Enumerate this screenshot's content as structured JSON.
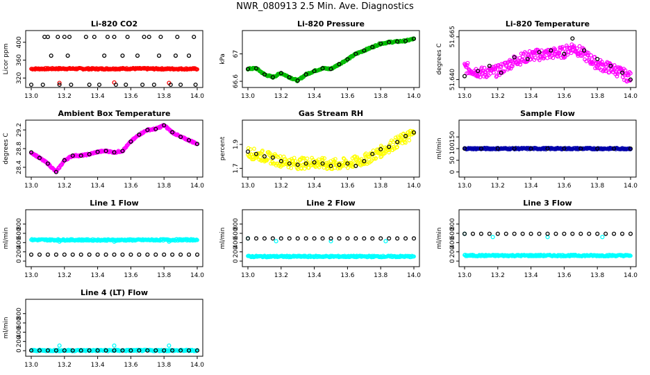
{
  "page_title": "NWR_080913  2.5 Min. Ave. Diagnostics",
  "chart_data": [
    {
      "type": "scatter",
      "title": "Li-820 CO2",
      "ylabel": "Licor ppm",
      "xlim": [
        13.0,
        14.0
      ],
      "ylim": [
        305,
        420
      ],
      "yticks": [
        320,
        360,
        400
      ],
      "xticks": [
        13.0,
        13.2,
        13.4,
        13.6,
        13.8,
        14.0
      ],
      "series": [
        {
          "color": "#ff0000",
          "style": "band",
          "x": [
            13.0,
            13.2,
            13.4,
            13.6,
            13.8,
            13.99
          ],
          "y": [
            340.5,
            341.0,
            340.5,
            341.0,
            340.5,
            340.5
          ]
        },
        {
          "color": "#ff0000",
          "style": "points",
          "x": [
            13.17,
            13.5,
            13.83
          ],
          "y": [
            309,
            310,
            309
          ]
        },
        {
          "color": "#000000",
          "style": "points",
          "x": [
            13.08,
            13.1,
            13.16,
            13.2,
            13.23,
            13.33,
            13.38,
            13.46,
            13.5,
            13.58,
            13.68,
            13.71,
            13.78,
            13.88,
            13.98,
            13.0,
            13.07,
            13.17,
            13.24,
            13.35,
            13.41,
            13.51,
            13.57,
            13.67,
            13.74,
            13.84,
            13.9,
            13.99,
            13.12,
            13.22,
            13.44,
            13.55,
            13.64,
            13.77,
            13.87,
            13.95
          ],
          "y": [
            412,
            412,
            412,
            412,
            412,
            412,
            412,
            412,
            412,
            412,
            412,
            412,
            412,
            412,
            412,
            305,
            305,
            305,
            305,
            305,
            305,
            305,
            305,
            305,
            305,
            305,
            305,
            305,
            370,
            370,
            370,
            370,
            370,
            370,
            370,
            370
          ]
        }
      ]
    },
    {
      "type": "scatter",
      "title": "Li-820 Pressure",
      "ylabel": "kPa",
      "xlim": [
        13.0,
        14.0
      ],
      "ylim": [
        66.55,
        67.3
      ],
      "yticks": [
        66.6,
        67.0
      ],
      "xticks": [
        13.0,
        13.2,
        13.4,
        13.6,
        13.8,
        14.0
      ],
      "series": [
        {
          "color": "#00bb00",
          "style": "band",
          "x": [
            13.0,
            13.05,
            13.1,
            13.15,
            13.2,
            13.25,
            13.3,
            13.35,
            13.4,
            13.45,
            13.5,
            13.55,
            13.6,
            13.65,
            13.7,
            13.75,
            13.8,
            13.85,
            13.9,
            13.95,
            14.0
          ],
          "y": [
            66.78,
            66.79,
            66.7,
            66.66,
            66.72,
            66.66,
            66.61,
            66.7,
            66.75,
            66.79,
            66.78,
            66.85,
            66.92,
            67.0,
            67.05,
            67.1,
            67.15,
            67.17,
            67.18,
            67.19,
            67.22
          ]
        },
        {
          "color": "#000000",
          "style": "points",
          "x": [
            13.0,
            13.05,
            13.1,
            13.15,
            13.2,
            13.25,
            13.3,
            13.35,
            13.4,
            13.45,
            13.5,
            13.55,
            13.6,
            13.65,
            13.7,
            13.75,
            13.8,
            13.85,
            13.9,
            13.95,
            14.0
          ],
          "y": [
            66.78,
            66.79,
            66.7,
            66.66,
            66.72,
            66.66,
            66.61,
            66.7,
            66.75,
            66.79,
            66.78,
            66.85,
            66.92,
            67.0,
            67.05,
            67.1,
            67.15,
            67.17,
            67.18,
            67.19,
            67.22
          ]
        }
      ]
    },
    {
      "type": "scatter",
      "title": "Li-820 Temperature",
      "ylabel": "degrees C",
      "xlim": [
        13.0,
        14.0
      ],
      "ylim": [
        51.637,
        51.667
      ],
      "yticks": [
        51.64,
        51.665
      ],
      "ytick_labels": [
        "51.640",
        "51.665"
      ],
      "xticks": [
        13.0,
        13.2,
        13.4,
        13.6,
        13.8,
        14.0
      ],
      "series": [
        {
          "color": "#ff00ff",
          "style": "scatterband",
          "x": [
            13.0,
            13.1,
            13.2,
            13.3,
            13.4,
            13.5,
            13.6,
            13.65,
            13.7,
            13.8,
            13.9,
            14.0
          ],
          "y": [
            51.647,
            51.644,
            51.645,
            51.651,
            51.654,
            51.655,
            51.656,
            51.659,
            51.656,
            51.649,
            51.646,
            51.641
          ]
        },
        {
          "color": "#000000",
          "style": "points",
          "x": [
            13.0,
            13.08,
            13.15,
            13.22,
            13.3,
            13.38,
            13.45,
            13.52,
            13.6,
            13.65,
            13.72,
            13.8,
            13.88,
            13.95,
            14.0
          ],
          "y": [
            51.642,
            51.645,
            51.648,
            51.644,
            51.653,
            51.652,
            51.656,
            51.657,
            51.655,
            51.664,
            51.657,
            51.652,
            51.648,
            51.644,
            51.64
          ]
        }
      ]
    },
    {
      "type": "scatter",
      "title": "Ambient Box Temperature",
      "ylabel": "degrees C",
      "xlim": [
        13.0,
        14.0
      ],
      "ylim": [
        28.25,
        29.35
      ],
      "yticks": [
        28.4,
        28.8,
        29.2
      ],
      "xticks": [
        13.0,
        13.2,
        13.4,
        13.6,
        13.8,
        14.0
      ],
      "series": [
        {
          "color": "#ff00ff",
          "style": "band",
          "x": [
            13.0,
            13.05,
            13.1,
            13.15,
            13.2,
            13.25,
            13.3,
            13.35,
            13.4,
            13.45,
            13.5,
            13.55,
            13.6,
            13.65,
            13.7,
            13.75,
            13.8,
            13.85,
            13.9,
            13.95,
            14.0
          ],
          "y": [
            28.72,
            28.6,
            28.48,
            28.3,
            28.55,
            28.65,
            28.65,
            28.68,
            28.73,
            28.75,
            28.72,
            28.75,
            28.95,
            29.1,
            29.2,
            29.22,
            29.3,
            29.15,
            29.05,
            28.98,
            28.9
          ]
        },
        {
          "color": "#000000",
          "style": "points",
          "x": [
            13.0,
            13.05,
            13.1,
            13.15,
            13.2,
            13.25,
            13.3,
            13.35,
            13.4,
            13.45,
            13.5,
            13.55,
            13.6,
            13.65,
            13.7,
            13.75,
            13.8,
            13.85,
            13.9,
            13.95,
            14.0
          ],
          "y": [
            28.72,
            28.6,
            28.48,
            28.3,
            28.55,
            28.65,
            28.65,
            28.68,
            28.73,
            28.75,
            28.72,
            28.75,
            28.95,
            29.1,
            29.2,
            29.22,
            29.3,
            29.15,
            29.05,
            28.98,
            28.9
          ]
        }
      ]
    },
    {
      "type": "scatter",
      "title": "Gas Stream RH",
      "ylabel": "percent",
      "xlim": [
        13.0,
        14.0
      ],
      "ylim": [
        1.65,
        2.08
      ],
      "yticks": [
        1.7,
        1.9
      ],
      "xticks": [
        13.0,
        13.2,
        13.4,
        13.6,
        13.8,
        14.0
      ],
      "series": [
        {
          "color": "#ffff00",
          "style": "scatterband",
          "x": [
            13.0,
            13.1,
            13.2,
            13.3,
            13.4,
            13.5,
            13.6,
            13.7,
            13.8,
            13.9,
            14.0
          ],
          "y": [
            1.83,
            1.8,
            1.76,
            1.74,
            1.75,
            1.73,
            1.74,
            1.77,
            1.84,
            1.92,
            1.99
          ]
        },
        {
          "color": "#000000",
          "style": "points",
          "x": [
            13.0,
            13.05,
            13.1,
            13.15,
            13.2,
            13.25,
            13.3,
            13.35,
            13.4,
            13.45,
            13.5,
            13.55,
            13.6,
            13.65,
            13.7,
            13.75,
            13.8,
            13.85,
            13.9,
            13.95,
            14.0
          ],
          "y": [
            1.84,
            1.82,
            1.8,
            1.79,
            1.76,
            1.74,
            1.73,
            1.74,
            1.75,
            1.74,
            1.72,
            1.73,
            1.74,
            1.72,
            1.76,
            1.82,
            1.86,
            1.88,
            1.92,
            1.97,
            2.0
          ]
        }
      ]
    },
    {
      "type": "scatter",
      "title": "Sample Flow",
      "ylabel": "ml/min",
      "xlim": [
        13.0,
        14.0
      ],
      "ylim": [
        -10,
        210
      ],
      "yticks": [
        0,
        50,
        100,
        150
      ],
      "xticks": [
        13.0,
        13.2,
        13.4,
        13.6,
        13.8,
        14.0
      ],
      "series": [
        {
          "color": "#0000aa",
          "style": "band",
          "x": [
            13.0,
            14.0
          ],
          "y": [
            100,
            100
          ]
        },
        {
          "color": "#000000",
          "style": "points",
          "x": [
            13.0,
            13.1,
            13.2,
            13.3,
            13.4,
            13.5,
            13.6,
            13.7,
            13.8,
            13.9,
            14.0
          ],
          "y": [
            100,
            100,
            100,
            100,
            100,
            100,
            100,
            100,
            100,
            100,
            100
          ]
        }
      ]
    },
    {
      "type": "scatter",
      "title": "Line 1 Flow",
      "ylabel": "ml/min",
      "xlim": [
        13.0,
        14.0
      ],
      "ylim": [
        -60,
        1050
      ],
      "yticks": [
        0,
        200,
        400,
        600,
        800
      ],
      "xticks": [
        13.0,
        13.2,
        13.4,
        13.6,
        13.8,
        14.0
      ],
      "series": [
        {
          "color": "#00ffff",
          "style": "band",
          "x": [
            13.0,
            13.5,
            14.0
          ],
          "y": [
            460,
            455,
            460
          ]
        },
        {
          "color": "#00ffff",
          "style": "points",
          "x": [
            13.17,
            13.5,
            13.83
          ],
          "y": [
            420,
            420,
            420
          ]
        },
        {
          "color": "#000000",
          "style": "points",
          "x": [
            13.0,
            13.05,
            13.1,
            13.15,
            13.2,
            13.25,
            13.3,
            13.35,
            13.4,
            13.45,
            13.5,
            13.55,
            13.6,
            13.65,
            13.7,
            13.75,
            13.8,
            13.85,
            13.9,
            13.95,
            14.0
          ],
          "y": [
            140,
            140,
            140,
            140,
            140,
            140,
            140,
            140,
            140,
            140,
            140,
            140,
            140,
            140,
            140,
            140,
            140,
            140,
            140,
            140,
            140
          ]
        }
      ]
    },
    {
      "type": "scatter",
      "title": "Line 2 Flow",
      "ylabel": "ml/min",
      "xlim": [
        13.0,
        14.0
      ],
      "ylim": [
        -60,
        1050
      ],
      "yticks": [
        0,
        200,
        400,
        600,
        800
      ],
      "xticks": [
        13.0,
        13.2,
        13.4,
        13.6,
        13.8,
        14.0
      ],
      "series": [
        {
          "color": "#00ffff",
          "style": "band",
          "x": [
            13.0,
            14.0
          ],
          "y": [
            100,
            100
          ]
        },
        {
          "color": "#00ffff",
          "style": "points",
          "x": [
            13.0,
            13.17,
            13.5,
            13.83
          ],
          "y": [
            490,
            430,
            430,
            430
          ]
        },
        {
          "color": "#000000",
          "style": "points",
          "x": [
            13.0,
            13.05,
            13.1,
            13.15,
            13.2,
            13.25,
            13.3,
            13.35,
            13.4,
            13.45,
            13.5,
            13.55,
            13.6,
            13.65,
            13.7,
            13.75,
            13.8,
            13.85,
            13.9,
            13.95,
            14.0
          ],
          "y": [
            490,
            490,
            490,
            490,
            490,
            490,
            490,
            490,
            490,
            490,
            490,
            490,
            490,
            490,
            490,
            490,
            490,
            490,
            490,
            490,
            490
          ]
        }
      ]
    },
    {
      "type": "scatter",
      "title": "Line 3 Flow",
      "ylabel": "ml/min",
      "xlim": [
        13.0,
        14.0
      ],
      "ylim": [
        -60,
        1050
      ],
      "yticks": [
        0,
        200,
        400,
        600,
        800
      ],
      "xticks": [
        13.0,
        13.2,
        13.4,
        13.6,
        13.8,
        14.0
      ],
      "series": [
        {
          "color": "#00ffff",
          "style": "band",
          "x": [
            13.0,
            14.0
          ],
          "y": [
            120,
            120
          ]
        },
        {
          "color": "#00ffff",
          "style": "points",
          "x": [
            13.0,
            13.17,
            13.5,
            13.83
          ],
          "y": [
            590,
            520,
            520,
            520
          ]
        },
        {
          "color": "#000000",
          "style": "points",
          "x": [
            13.0,
            13.05,
            13.1,
            13.15,
            13.2,
            13.25,
            13.3,
            13.35,
            13.4,
            13.45,
            13.5,
            13.55,
            13.6,
            13.65,
            13.7,
            13.75,
            13.8,
            13.85,
            13.9,
            13.95,
            14.0
          ],
          "y": [
            590,
            590,
            590,
            590,
            590,
            590,
            590,
            590,
            590,
            590,
            590,
            590,
            590,
            590,
            590,
            590,
            590,
            590,
            590,
            590,
            590
          ]
        }
      ]
    },
    {
      "type": "scatter",
      "title": "Line 4 (LT) Flow",
      "ylabel": "ml/min",
      "xlim": [
        13.0,
        14.0
      ],
      "ylim": [
        -60,
        1050
      ],
      "yticks": [
        0,
        200,
        400,
        600,
        800
      ],
      "xticks": [
        13.0,
        13.2,
        13.4,
        13.6,
        13.8,
        14.0
      ],
      "series": [
        {
          "color": "#00ffff",
          "style": "band",
          "x": [
            13.0,
            14.0
          ],
          "y": [
            5,
            5
          ]
        },
        {
          "color": "#00ffff",
          "style": "points",
          "x": [
            13.17,
            13.5,
            13.83
          ],
          "y": [
            110,
            110,
            110
          ]
        },
        {
          "color": "#000000",
          "style": "points",
          "x": [
            13.0,
            13.05,
            13.1,
            13.15,
            13.2,
            13.25,
            13.3,
            13.35,
            13.4,
            13.45,
            13.5,
            13.55,
            13.6,
            13.65,
            13.7,
            13.75,
            13.8,
            13.85,
            13.9,
            13.95,
            14.0
          ],
          "y": [
            5,
            5,
            5,
            5,
            5,
            5,
            5,
            5,
            5,
            5,
            5,
            5,
            5,
            5,
            5,
            5,
            5,
            5,
            5,
            5,
            5
          ]
        }
      ]
    }
  ]
}
